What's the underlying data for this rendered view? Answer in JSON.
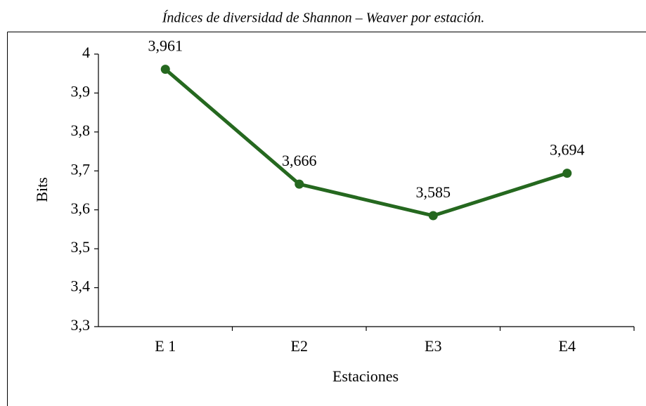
{
  "chart_data": {
    "type": "line",
    "title": "Índices de diversidad de Shannon – Weaver por estación.",
    "xlabel": "Estaciones",
    "ylabel": "Bits",
    "categories": [
      "E 1",
      "E2",
      "E3",
      "E4"
    ],
    "series": [
      {
        "name": "Bits",
        "color": "#25681f",
        "values": [
          3.961,
          3.666,
          3.585,
          3.694
        ],
        "value_labels": [
          "3,961",
          "3,666",
          "3,585",
          "3,694"
        ]
      }
    ],
    "ylim": [
      3.3,
      4
    ],
    "yticks": [
      {
        "value": 3.3,
        "label": "3,3"
      },
      {
        "value": 3.4,
        "label": "3,4"
      },
      {
        "value": 3.5,
        "label": "3,5"
      },
      {
        "value": 3.6,
        "label": "3,6"
      },
      {
        "value": 3.7,
        "label": "3,7"
      },
      {
        "value": 3.8,
        "label": "3,8"
      },
      {
        "value": 3.9,
        "label": "3,9"
      },
      4
    ],
    "grid": false
  }
}
